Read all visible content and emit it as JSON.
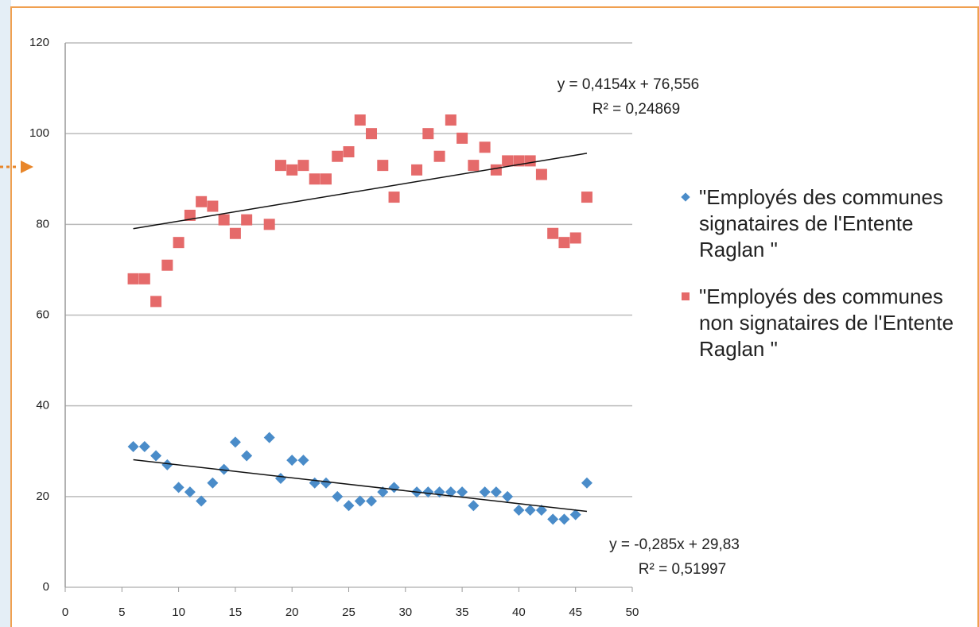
{
  "chart_data": {
    "type": "scatter",
    "xlim": [
      0,
      50
    ],
    "xticks": [
      0,
      5,
      10,
      15,
      20,
      25,
      30,
      35,
      40,
      45,
      50
    ],
    "ylim": [
      0,
      120
    ],
    "yticks": [
      0,
      20,
      40,
      60,
      80,
      100,
      120
    ],
    "grid": true,
    "legend": "right",
    "series": [
      {
        "name": "\"Employés des communes  signataires de l'Entente Raglan \"",
        "color": "#4a8cc9",
        "marker": "diamond",
        "x": [
          6,
          7,
          8,
          9,
          10,
          11,
          12,
          13,
          14,
          15,
          16,
          18,
          19,
          20,
          21,
          22,
          23,
          24,
          25,
          26,
          27,
          28,
          29,
          31,
          32,
          33,
          34,
          35,
          36,
          37,
          38,
          39,
          40,
          41,
          42,
          43,
          44,
          45,
          46
        ],
        "values": [
          31,
          31,
          29,
          27,
          22,
          21,
          19,
          23,
          26,
          32,
          29,
          33,
          24,
          28,
          28,
          23,
          23,
          20,
          18,
          19,
          19,
          21,
          22,
          21,
          21,
          21,
          21,
          21,
          18,
          21,
          21,
          20,
          17,
          17,
          17,
          15,
          15,
          16,
          23
        ],
        "trendline": {
          "slope": -0.285,
          "intercept": 29.83,
          "label": "y = -0,285x + 29,83",
          "r2_label": "R² = 0,51997"
        }
      },
      {
        "name": "\"Employés des communes non signataires de l'Entente Raglan \"",
        "color": "#e56a6a",
        "marker": "square",
        "x": [
          6,
          7,
          8,
          9,
          10,
          11,
          12,
          13,
          14,
          15,
          16,
          18,
          19,
          20,
          21,
          22,
          23,
          24,
          25,
          26,
          27,
          28,
          29,
          31,
          32,
          33,
          34,
          35,
          36,
          37,
          38,
          39,
          40,
          41,
          42,
          43,
          44,
          45,
          46
        ],
        "values": [
          68,
          68,
          63,
          71,
          76,
          82,
          85,
          84,
          81,
          78,
          81,
          80,
          93,
          92,
          93,
          90,
          90,
          95,
          96,
          103,
          100,
          93,
          86,
          92,
          100,
          95,
          103,
          99,
          93,
          97,
          92,
          94,
          94,
          94,
          91,
          78,
          76,
          77,
          86
        ],
        "trendline": {
          "slope": 0.4154,
          "intercept": 76.556,
          "label": "y = 0,4154x + 76,556",
          "r2_label": "R² = 0,24869"
        }
      }
    ]
  }
}
